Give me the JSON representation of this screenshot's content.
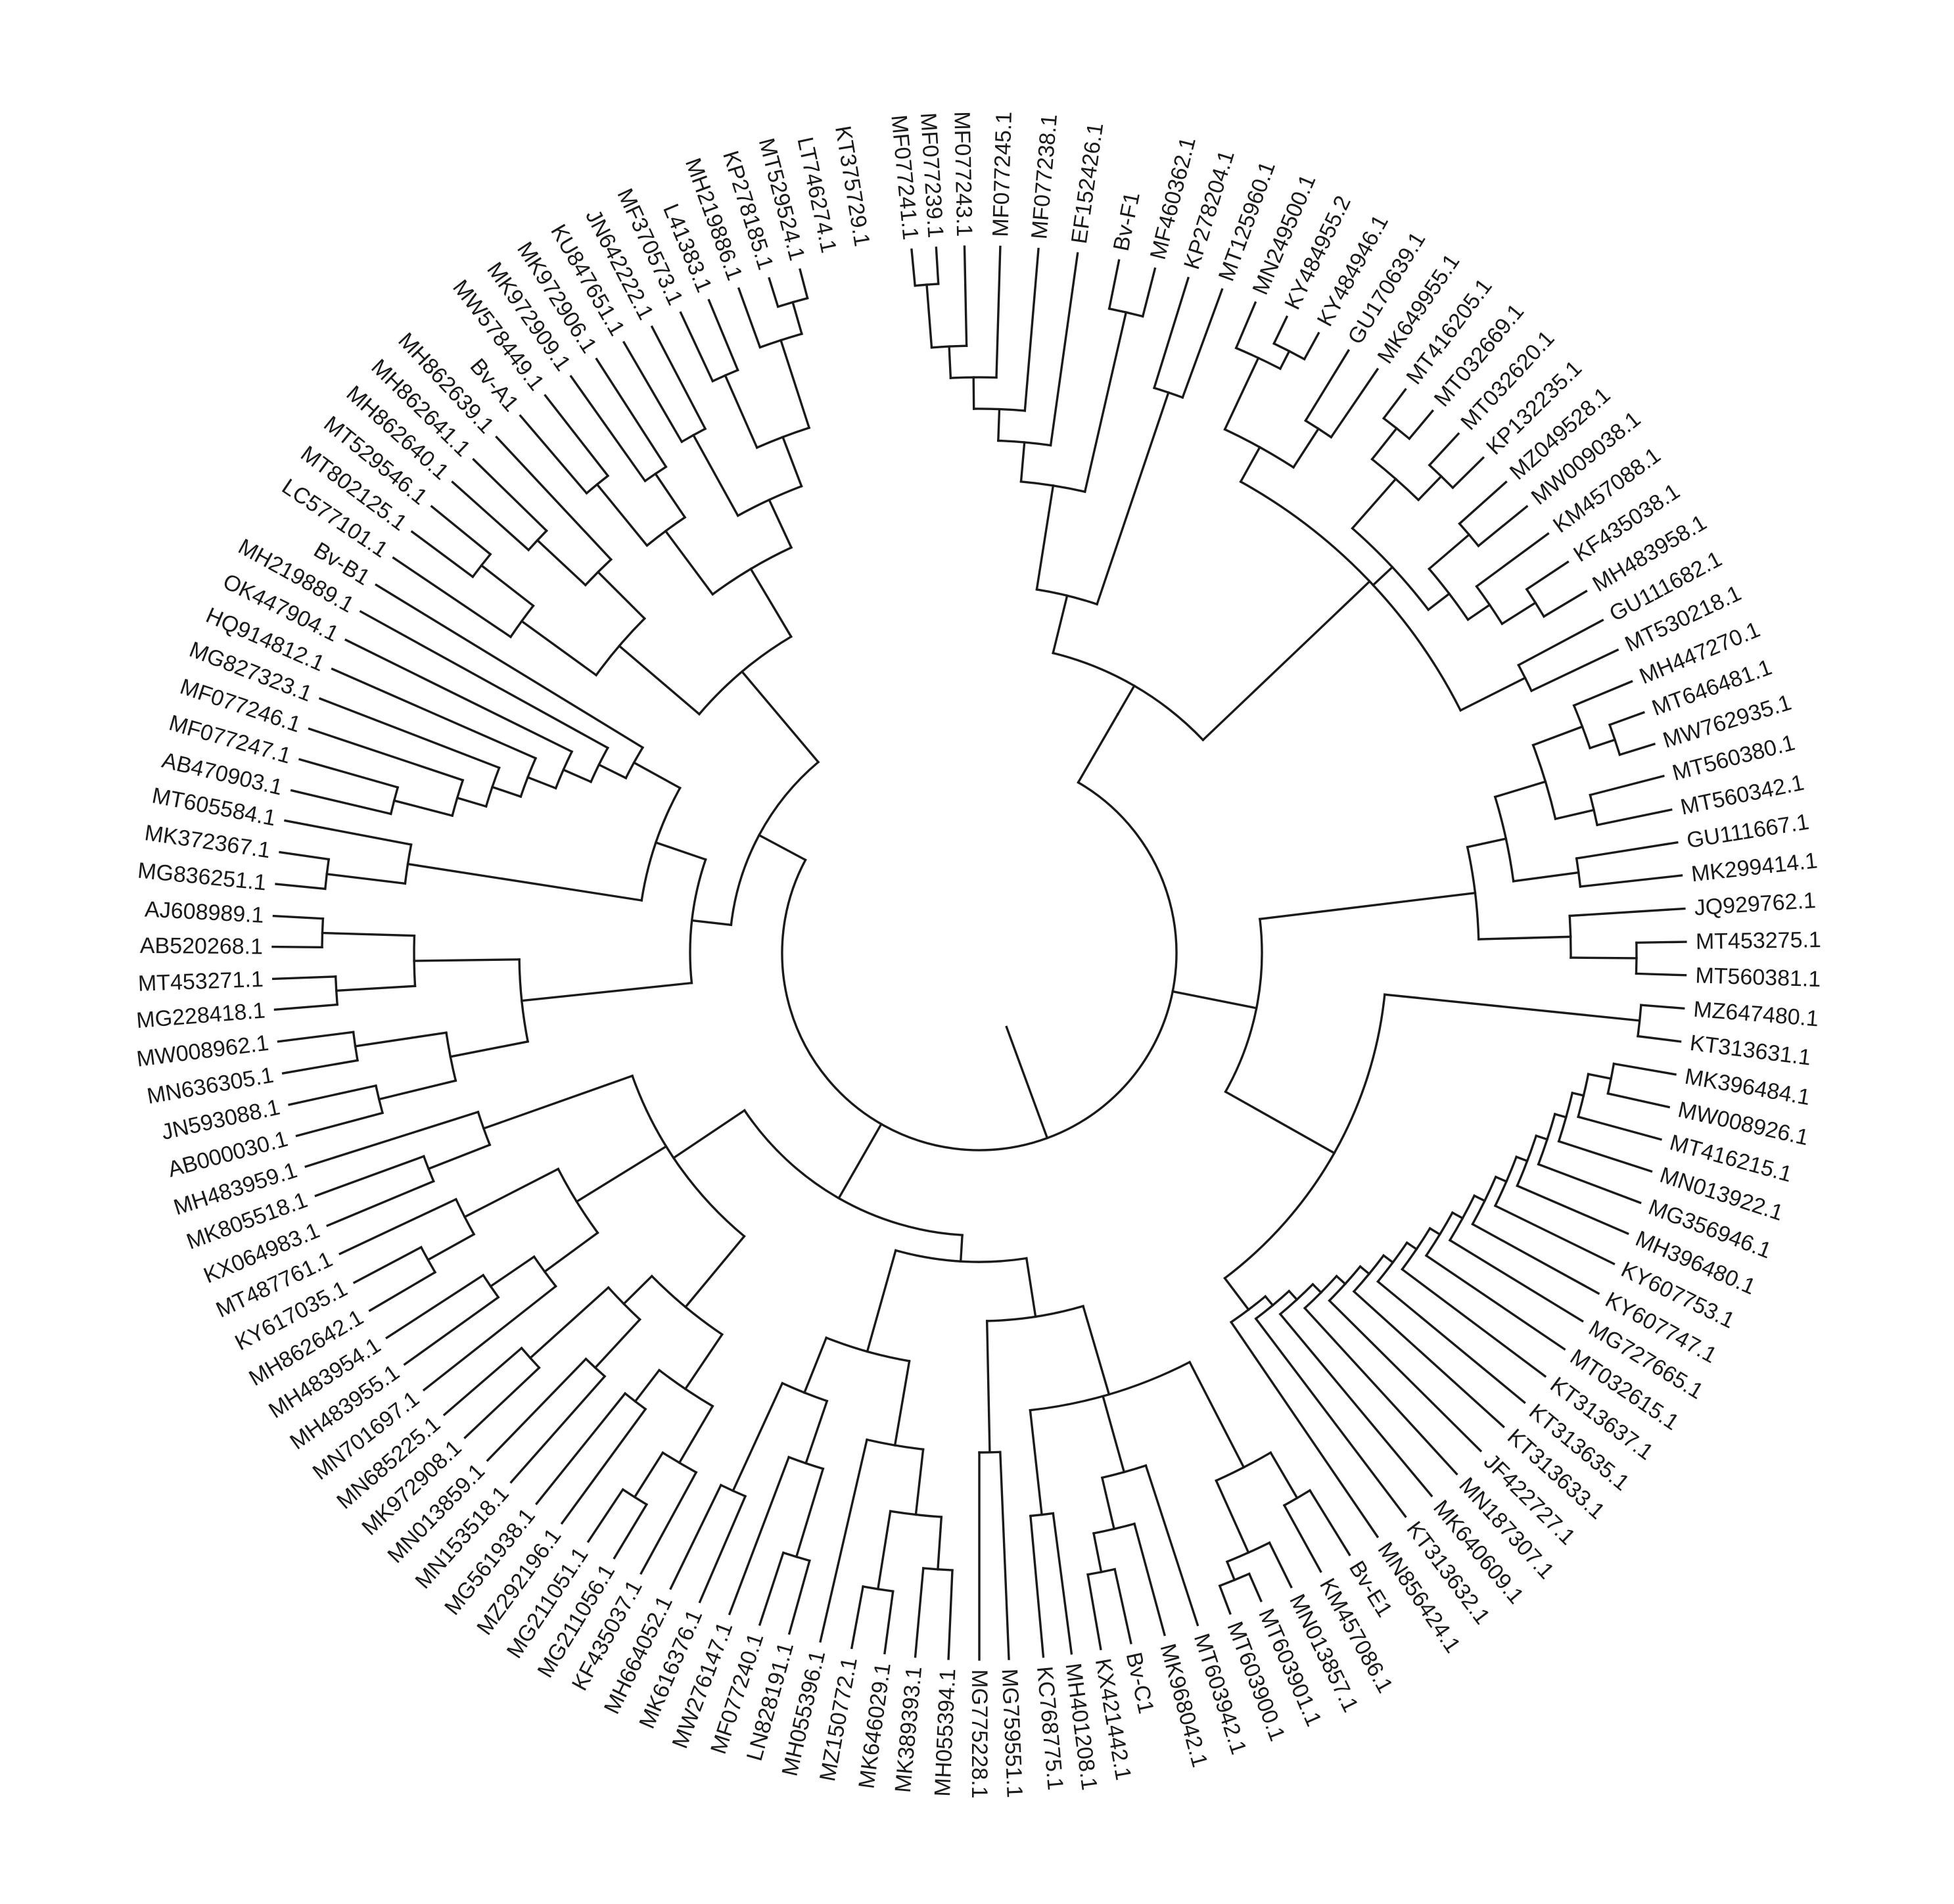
{
  "tree": {
    "tips": [
      {
        "label": "MF077241.1",
        "angle": -95.5
      },
      {
        "label": "MF077239.1",
        "angle": -93.5
      },
      {
        "label": "MF077243.1",
        "angle": -91.2
      },
      {
        "label": "MF077245.1",
        "angle": -88.3
      },
      {
        "label": "MF077238.1",
        "angle": -85.2
      },
      {
        "label": "EF152426.1",
        "angle": -82.0
      },
      {
        "label": "Bv-F1",
        "angle": -78.6
      },
      {
        "label": "MF460362.1",
        "angle": -75.6
      },
      {
        "label": "KP278204.1",
        "angle": -72.8
      },
      {
        "label": "MT125960.1",
        "angle": -69.9
      },
      {
        "label": "MN249500.1",
        "angle": -67.0
      },
      {
        "label": "KY484955.2",
        "angle": -64.2
      },
      {
        "label": "KY484946.1",
        "angle": -61.3
      },
      {
        "label": "GU170639.1",
        "angle": -58.5
      },
      {
        "label": "MK649955.1",
        "angle": -55.7
      },
      {
        "label": "MT416205.1",
        "angle": -52.9
      },
      {
        "label": "MT032669.1",
        "angle": -50.1
      },
      {
        "label": "MT032620.1",
        "angle": -47.3
      },
      {
        "label": "KP132235.1",
        "angle": -44.5
      },
      {
        "label": "MZ049528.1",
        "angle": -41.8
      },
      {
        "label": "MW009038.1",
        "angle": -39.2
      },
      {
        "label": "KM457088.1",
        "angle": -36.4
      },
      {
        "label": "KF435038.1",
        "angle": -33.6
      },
      {
        "label": "MH483958.1",
        "angle": -30.8
      },
      {
        "label": "GU111682.1",
        "angle": -28.1
      },
      {
        "label": "MT530218.1",
        "angle": -25.4
      },
      {
        "label": "MH447270.1",
        "angle": -22.6
      },
      {
        "label": "MT646481.1",
        "angle": -19.9
      },
      {
        "label": "MW762935.1",
        "angle": -17.2
      },
      {
        "label": "MT560380.1",
        "angle": -14.5
      },
      {
        "label": "MT560342.1",
        "angle": -11.7
      },
      {
        "label": "GU111667.1",
        "angle": -9.0
      },
      {
        "label": "MK299414.1",
        "angle": -6.3
      },
      {
        "label": "JQ929762.1",
        "angle": -3.6
      },
      {
        "label": "MT453275.1",
        "angle": -0.9
      },
      {
        "label": "MT560381.1",
        "angle": 1.8
      },
      {
        "label": "MZ647480.1",
        "angle": 4.5
      },
      {
        "label": "KT313631.1",
        "angle": 7.2
      },
      {
        "label": "MK396484.1",
        "angle": 9.9
      },
      {
        "label": "MW008926.1",
        "angle": 12.6
      },
      {
        "label": "MT416215.1",
        "angle": 15.3
      },
      {
        "label": "MN013922.1",
        "angle": 18.0
      },
      {
        "label": "MG356946.1",
        "angle": 20.7
      },
      {
        "label": "MH396480.1",
        "angle": 23.4
      },
      {
        "label": "KY607753.1",
        "angle": 26.1
      },
      {
        "label": "KY607747.1",
        "angle": 28.8
      },
      {
        "label": "MG727665.1",
        "angle": 31.4
      },
      {
        "label": "MT032615.1",
        "angle": 34.1
      },
      {
        "label": "KT313637.1",
        "angle": 36.8
      },
      {
        "label": "KT313635.1",
        "angle": 39.5
      },
      {
        "label": "KT313633.1",
        "angle": 42.1
      },
      {
        "label": "JF422727.1",
        "angle": 44.8
      },
      {
        "label": "MN187307.1",
        "angle": 47.5
      },
      {
        "label": "MK640609.1",
        "angle": 50.2
      },
      {
        "label": "KT313632.1",
        "angle": 52.9
      },
      {
        "label": "MN856424.1",
        "angle": 55.7
      },
      {
        "label": "Bv-E1",
        "angle": 58.4
      },
      {
        "label": "KM457086.1",
        "angle": 61.1
      },
      {
        "label": "MN013857.1",
        "angle": 63.8
      },
      {
        "label": "MT603901.1",
        "angle": 66.5
      },
      {
        "label": "MT603900.1",
        "angle": 69.2
      },
      {
        "label": "MT603942.1",
        "angle": 72.0
      },
      {
        "label": "MK968042.1",
        "angle": 74.8
      },
      {
        "label": "Bv-C1",
        "angle": 77.6
      },
      {
        "label": "KX421442.1",
        "angle": 80.1
      },
      {
        "label": "MH401208.1",
        "angle": 82.5
      },
      {
        "label": "KC768775.1",
        "angle": 84.8
      },
      {
        "label": "MG759551.1",
        "angle": 87.6
      },
      {
        "label": "MG775228.1",
        "angle": 90.0
      },
      {
        "label": "MH055394.1",
        "angle": 92.5
      },
      {
        "label": "MK389393.1",
        "angle": 95.2
      },
      {
        "label": "MK646029.1",
        "angle": 97.7
      },
      {
        "label": "MZ150772.1",
        "angle": 100.4
      },
      {
        "label": "MH055396.1",
        "angle": 103.0
      },
      {
        "label": "LN828191.1",
        "angle": 105.6
      },
      {
        "label": "MF077240.1",
        "angle": 108.1
      },
      {
        "label": "MW276147.1",
        "angle": 110.7
      },
      {
        "label": "MK616376.1",
        "angle": 113.3
      },
      {
        "label": "MH664052.1",
        "angle": 115.9
      },
      {
        "label": "KF435037.1",
        "angle": 118.6
      },
      {
        "label": "MG211056.1",
        "angle": 121.1
      },
      {
        "label": "MG211051.1",
        "angle": 123.6
      },
      {
        "label": "MZ292196.1",
        "angle": 126.2
      },
      {
        "label": "MG561938.1",
        "angle": 128.8
      },
      {
        "label": "MN153518.1",
        "angle": 131.5
      },
      {
        "label": "MN013859.1",
        "angle": 134.1
      },
      {
        "label": "MK972908.1",
        "angle": 136.7
      },
      {
        "label": "MN685225.1",
        "angle": 139.2
      },
      {
        "label": "MN701697.1",
        "angle": 141.8
      },
      {
        "label": "MH483955.1",
        "angle": 144.4
      },
      {
        "label": "MH483954.1",
        "angle": 147.0
      },
      {
        "label": "MH862642.1",
        "angle": 149.6
      },
      {
        "label": "KY617035.1",
        "angle": 152.2
      },
      {
        "label": "MT487761.1",
        "angle": 154.8
      },
      {
        "label": "KX064983.1",
        "angle": 157.3
      },
      {
        "label": "MK805518.1",
        "angle": 159.9
      },
      {
        "label": "MH483959.1",
        "angle": 162.4
      },
      {
        "label": "AB000030.1",
        "angle": 165.0
      },
      {
        "label": "JN593088.1",
        "angle": 167.6
      },
      {
        "label": "MN636305.1",
        "angle": 170.2
      },
      {
        "label": "MW008962.1",
        "angle": 172.8
      },
      {
        "label": "MG228418.1",
        "angle": 175.4
      },
      {
        "label": "MT453271.1",
        "angle": 177.9
      },
      {
        "label": "AB520268.1",
        "angle": 180.5
      },
      {
        "label": "AJ608989.1",
        "angle": 183.0
      },
      {
        "label": "MG836251.1",
        "angle": 185.6
      },
      {
        "label": "MK372367.1",
        "angle": 188.2
      },
      {
        "label": "MT605584.1",
        "angle": 190.8
      },
      {
        "label": "AB470903.1",
        "angle": 193.3
      },
      {
        "label": "MF077247.1",
        "angle": 195.9
      },
      {
        "label": "MF077246.1",
        "angle": 198.5
      },
      {
        "label": "MG827323.1",
        "angle": 201.1
      },
      {
        "label": "HQ914812.1",
        "angle": 203.7
      },
      {
        "label": "OK447904.1",
        "angle": 206.3
      },
      {
        "label": "MH219889.1",
        "angle": 208.9
      },
      {
        "label": "Bv-B1",
        "angle": 211.4
      },
      {
        "label": "LC577101.1",
        "angle": 214.0
      },
      {
        "label": "MT802125.1",
        "angle": 216.6
      },
      {
        "label": "MT529546.1",
        "angle": 219.2
      },
      {
        "label": "MH862640.1",
        "angle": 221.8
      },
      {
        "label": "MH862641.1",
        "angle": 224.3
      },
      {
        "label": "MH862639.1",
        "angle": 226.9
      },
      {
        "label": "Bv-A1",
        "angle": 229.5
      },
      {
        "label": "MW578449.1",
        "angle": 232.1
      },
      {
        "label": "MK972909.1",
        "angle": 234.7
      },
      {
        "label": "MK972906.1",
        "angle": 237.2
      },
      {
        "label": "KU847651.1",
        "angle": 239.8
      },
      {
        "label": "JN642222.1",
        "angle": 242.4
      },
      {
        "label": "MF370573.1",
        "angle": 245.0
      },
      {
        "label": "L41383.1",
        "angle": 247.5
      },
      {
        "label": "MH219886.1",
        "angle": 250.1
      },
      {
        "label": "KP278185.1",
        "angle": 252.7
      },
      {
        "label": "MT529524.1",
        "angle": 255.3
      },
      {
        "label": "LT746274.1",
        "angle": 257.9
      },
      {
        "label": "KT375729.1",
        "angle": 260.6
      }
    ]
  }
}
